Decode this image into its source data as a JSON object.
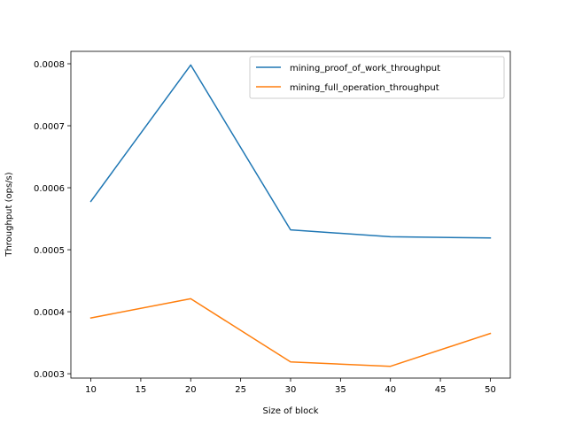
{
  "chart_data": {
    "type": "line",
    "title": "",
    "xlabel": "Size of block",
    "ylabel": "Throughput (ops/s)",
    "x": [
      10,
      20,
      30,
      40,
      50
    ],
    "xlim": [
      8,
      52
    ],
    "ylim": [
      0.000293,
      0.00082
    ],
    "xticks": [
      10,
      15,
      20,
      25,
      30,
      35,
      40,
      45,
      50
    ],
    "yticks": [
      0.0003,
      0.0004,
      0.0005,
      0.0006,
      0.0007,
      0.0008
    ],
    "ytick_labels": [
      "0.0003",
      "0.0004",
      "0.0005",
      "0.0006",
      "0.0007",
      "0.0008"
    ],
    "grid": false,
    "legend_position": "top-right",
    "series": [
      {
        "name": "mining_proof_of_work_throughput",
        "color": "#1f77b4",
        "values": [
          0.000578,
          0.000798,
          0.000532,
          0.000521,
          0.000519
        ]
      },
      {
        "name": "mining_full_operation_throughput",
        "color": "#ff7f0e",
        "values": [
          0.00039,
          0.000421,
          0.000319,
          0.000312,
          0.000365
        ]
      }
    ]
  }
}
